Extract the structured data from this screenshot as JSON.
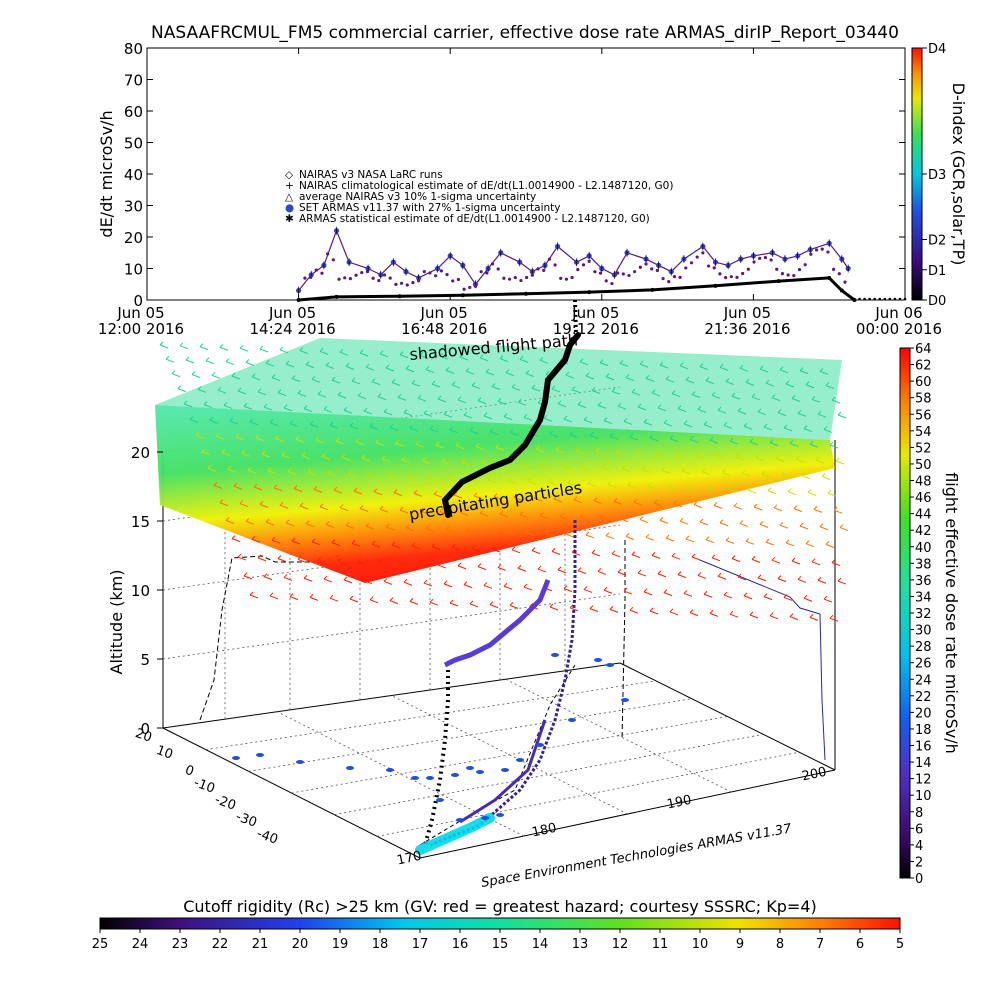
{
  "title": "NASAAFRCMUL_FM5 commercial carrier, effective dose rate ARMAS_dirIP_Report_03440",
  "time_series": {
    "ylabel": "dE/dt microSv/h",
    "yticks": [
      "0",
      "10",
      "20",
      "30",
      "40",
      "50",
      "60",
      "70",
      "80"
    ],
    "xtick_day": [
      "Jun 05",
      "Jun 05",
      "Jun 05",
      "Jun 05",
      "Jun 05",
      "Jun 06"
    ],
    "xtick_time": [
      "12:00 2016",
      "14:24 2016",
      "16:48 2016",
      "19:12 2016",
      "21:36 2016",
      "00:00 2016"
    ],
    "legend": [
      "NAIRAS v3 NASA LaRC runs",
      "NAIRAS climatological estimate of dE/dt(L1.0014900 - L2.1487120, G0)",
      "average NAIRAS v3 10% 1-sigma uncertainty",
      "SET ARMAS v11.37 with 27% 1-sigma uncertainty",
      "ARMAS statistical estimate of dE/dt(L1.0014900 - L2.1487120, G0)"
    ],
    "legend_symbols": [
      "◇",
      "+",
      "△",
      "●",
      "✱"
    ],
    "dindex_label": "D-index (GCR,solar,TP)",
    "dindex_ticks": [
      "D0",
      "D1",
      "D2",
      "D3",
      "D4"
    ]
  },
  "three_d": {
    "zlabel": "Altitude (km)",
    "zticks": [
      "0",
      "5",
      "10",
      "15",
      "20"
    ],
    "lat_ticks": [
      "20",
      "10",
      "0",
      "-10",
      "-20",
      "-30",
      "-40"
    ],
    "lon_ticks": [
      "170",
      "180",
      "190",
      "200"
    ],
    "annotation_top": "shadowed flight path",
    "annotation_mid": "precipitating particles",
    "credit": "Space Environment Technologies ARMAS v11.37",
    "dose_label": "flight effective dose rate microSv/h",
    "dose_ticks": [
      "0",
      "2",
      "4",
      "6",
      "8",
      "10",
      "12",
      "14",
      "16",
      "18",
      "20",
      "22",
      "24",
      "26",
      "28",
      "30",
      "32",
      "34",
      "36",
      "38",
      "40",
      "42",
      "44",
      "46",
      "48",
      "50",
      "52",
      "54",
      "56",
      "58",
      "60",
      "62",
      "64"
    ]
  },
  "cutoff": {
    "label": "Cutoff rigidity (Rc) >25 km (GV: red = greatest hazard; courtesy SSSRC; Kp=4)",
    "ticks": [
      "25",
      "24",
      "23",
      "22",
      "21",
      "20",
      "19",
      "18",
      "17",
      "16",
      "15",
      "14",
      "13",
      "12",
      "11",
      "10",
      "9",
      "8",
      "7",
      "6",
      "5"
    ]
  },
  "colors": {
    "armas_series": "#3a3ad0",
    "nairas_series": "#5a1a80",
    "estimate_series": "#000000",
    "grid": "#333333"
  },
  "chart_data": [
    {
      "type": "scatter",
      "title": "NASAAFRCMUL_FM5 commercial carrier, effective dose rate ARMAS_dirIP_Report_03440",
      "xlabel": "",
      "ylabel": "dE/dt microSv/h",
      "xlim": [
        "2016-06-05 12:00",
        "2016-06-06 00:00"
      ],
      "ylim": [
        0,
        80
      ],
      "grid": false,
      "series": [
        {
          "name": "SET ARMAS v11.37 with 27% 1-sigma uncertainty",
          "x_hours": [
            14.4,
            14.6,
            14.8,
            15.0,
            15.2,
            15.5,
            15.7,
            15.9,
            16.1,
            16.3,
            16.6,
            16.8,
            17.0,
            17.2,
            17.4,
            17.6,
            17.9,
            18.1,
            18.3,
            18.5,
            18.8,
            19.0,
            19.2,
            19.4,
            19.6,
            19.9,
            20.1,
            20.3,
            20.5,
            20.8,
            21.0,
            21.2,
            21.4,
            21.6,
            21.9,
            22.1,
            22.3,
            22.5,
            22.8,
            23.0,
            23.1
          ],
          "y": [
            3,
            8,
            11,
            22,
            12,
            10,
            8,
            12,
            9,
            7,
            10,
            14,
            11,
            5,
            10,
            15,
            12,
            9,
            11,
            17,
            12,
            14,
            10,
            8,
            15,
            13,
            11,
            9,
            13,
            17,
            12,
            11,
            13,
            14,
            15,
            13,
            14,
            16,
            18,
            13,
            10
          ]
        },
        {
          "name": "ARMAS statistical estimate of dE/dt(L1.0014900 - L2.1487120, G0)",
          "x_hours": [
            14.4,
            15.0,
            16.0,
            17.0,
            18.0,
            19.0,
            20.0,
            21.0,
            22.0,
            22.8,
            23.0,
            23.2
          ],
          "y": [
            0,
            1,
            1.2,
            1.5,
            2,
            2.5,
            3.2,
            4.5,
            6,
            7,
            3,
            0
          ]
        }
      ]
    }
  ]
}
